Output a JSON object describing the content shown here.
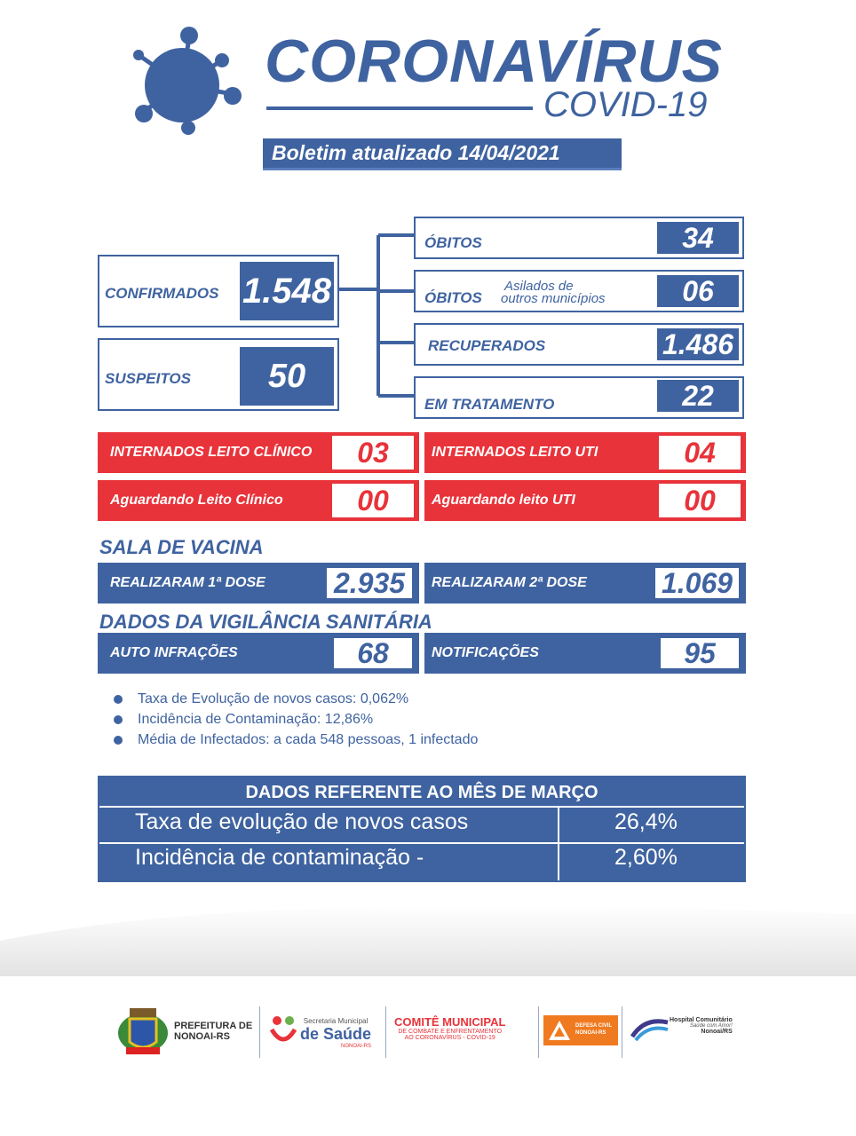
{
  "header": {
    "title": "CORONAVÍRUS",
    "subtitle": "COVID-19",
    "bulletin": "Boletim atualizado 14/04/2021"
  },
  "stats": {
    "confirmados_label": "CONFIRMADOS",
    "confirmados_value": "1.548",
    "suspeitos_label": "SUSPEITOS",
    "suspeitos_value": "50",
    "obitos_label": "ÓBITOS",
    "obitos_value": "34",
    "obitos2_label": "ÓBITOS",
    "obitos2_note": "Asilados de outros municípios",
    "obitos2_note_line1": "Asilados de",
    "obitos2_note_line2": "outros municípios",
    "obitos2_value": "06",
    "recuperados_label": "RECUPERADOS",
    "recuperados_value": "1.486",
    "tratamento_label": "EM TRATAMENTO",
    "tratamento_value": "22"
  },
  "hospital": {
    "leito_clinico_label": "INTERNADOS LEITO CLÍNICO",
    "leito_clinico_value": "03",
    "leito_uti_label": "INTERNADOS LEITO UTI",
    "leito_uti_value": "04",
    "aguardando_clinico_label": "Aguardando Leito Clínico",
    "aguardando_clinico_value": "00",
    "aguardando_uti_label": "Aguardando leito UTI",
    "aguardando_uti_value": "00"
  },
  "vacina": {
    "title": "SALA DE VACINA",
    "dose1_label": "REALIZARAM 1ª DOSE",
    "dose1_value": "2.935",
    "dose2_label": "REALIZARAM 2ª DOSE",
    "dose2_value": "1.069"
  },
  "vigilancia": {
    "title": "DADOS DA VIGILÂNCIA SANITÁRIA",
    "infracoes_label": "AUTO INFRAÇÕES",
    "infracoes_value": "68",
    "notificacoes_label": "NOTIFICAÇÕES",
    "notificacoes_value": "95"
  },
  "bullets": [
    "Taxa de Evolução de novos casos: 0,062%",
    "Incidência de Contaminação: 12,86%",
    "Média de Infectados: a cada 548  pessoas, 1 infectado"
  ],
  "march": {
    "header": "DADOS REFERENTE AO MÊS DE MARÇO",
    "rows": [
      {
        "label": "Taxa de evolução de novos casos",
        "value": "26,4%"
      },
      {
        "label": "Incidência de contaminação -",
        "value": "2,60%"
      }
    ]
  },
  "footer": {
    "prefeitura": "PREFEITURA DE",
    "prefeitura2": "NONOAI-RS",
    "secretaria": "Secretaria Municipal",
    "saude": "de Saúde",
    "saude_sub": "NONOAI-RS",
    "comite": "COMITÊ MUNICIPAL",
    "comite_sub1": "DE COMBATE E ENFRENTAMENTO",
    "comite_sub2": "AO CORONAVÍRUS - COVID-19",
    "defesa": "DEFESA CIVIL",
    "defesa2": "NONOAI-RS",
    "hospital": "Hospital Comunitário",
    "hospital_sub": "Saúde com Amor!",
    "hospital_city": "Nonoai/RS"
  },
  "colors": {
    "blue": "#3f63a0",
    "red": "#e8333a"
  }
}
